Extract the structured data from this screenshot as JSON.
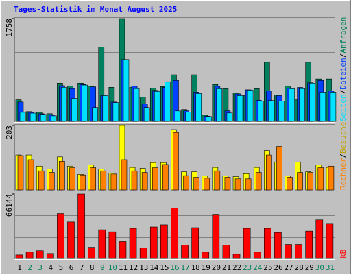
{
  "chart_data": [
    {
      "type": "bar",
      "title": "Tages-Statistik im Monat August 2025",
      "ylim": [
        0,
        1758
      ],
      "yticks": [
        1758
      ],
      "legend_separator": "/",
      "series": [
        {
          "name": "Anfragen",
          "color": "#00805c",
          "values": [
            368,
            166,
            154,
            131,
            653,
            606,
            653,
            606,
            1271,
            582,
            1758,
            582,
            416,
            570,
            594,
            796,
            202,
            796,
            107,
            630,
            558,
            487,
            440,
            558,
            1010,
            451,
            606,
            368,
            1010,
            725,
            725
          ]
        },
        {
          "name": "Dateien",
          "color": "#0040ff",
          "values": [
            330,
            154,
            130,
            110,
            610,
            560,
            630,
            590,
            440,
            330,
            1057,
            606,
            300,
            530,
            580,
            700,
            180,
            500,
            90,
            600,
            180,
            470,
            540,
            360,
            520,
            440,
            570,
            580,
            660,
            700,
            520
          ]
        },
        {
          "name": "Seiten",
          "color": "#00e0ff",
          "values": [
            154,
            140,
            119,
            95,
            582,
            392,
            620,
            238,
            440,
            321,
            1057,
            560,
            238,
            511,
            677,
            178,
            160,
            475,
            83,
            558,
            143,
            440,
            534,
            344,
            356,
            344,
            558,
            560,
            653,
            499,
            499
          ]
        }
      ]
    },
    {
      "type": "bar",
      "ylim": [
        0,
        203
      ],
      "yticks": [
        203
      ],
      "legend_separator": "/",
      "series": [
        {
          "name": "Besuche",
          "color": "#ffff00",
          "values": [
            110,
            110,
            75,
            66,
            104,
            75,
            49,
            79,
            66,
            53,
            203,
            71,
            68,
            86,
            86,
            190,
            57,
            57,
            44,
            71,
            44,
            42,
            51,
            71,
            124,
            88,
            44,
            88,
            57,
            79,
            71
          ]
        },
        {
          "name": "Rechner",
          "color": "#ff8000",
          "values": [
            108,
            95,
            60,
            55,
            90,
            70,
            47,
            70,
            60,
            50,
            95,
            60,
            55,
            70,
            80,
            181,
            45,
            40,
            37,
            60,
            40,
            35,
            35,
            55,
            110,
            137,
            40,
            55,
            55,
            70,
            75
          ]
        }
      ]
    },
    {
      "type": "bar",
      "ylim": [
        0,
        66144
      ],
      "yticks": [
        66144
      ],
      "categories": [
        "1",
        "2",
        "3",
        "4",
        "5",
        "6",
        "7",
        "8",
        "9",
        "10",
        "11",
        "12",
        "13",
        "14",
        "15",
        "16",
        "17",
        "18",
        "19",
        "20",
        "21",
        "22",
        "23",
        "24",
        "25",
        "26",
        "27",
        "28",
        "29",
        "30",
        "31"
      ],
      "category_colors": [
        "#000000",
        "#00805c",
        "#00805c",
        "#000000",
        "#000000",
        "#000000",
        "#000000",
        "#000000",
        "#00805c",
        "#00805c",
        "#000000",
        "#000000",
        "#000000",
        "#000000",
        "#000000",
        "#00805c",
        "#00805c",
        "#000000",
        "#000000",
        "#000000",
        "#000000",
        "#000000",
        "#00805c",
        "#00805c",
        "#000000",
        "#000000",
        "#000000",
        "#000000",
        "#000000",
        "#00805c",
        "#00805c"
      ],
      "series": [
        {
          "name": "kB",
          "color": "#ff0000",
          "values": [
            3595,
            6471,
            7909,
            5033,
            46015,
            37387,
            66144,
            11504,
            29479,
            27322,
            17256,
            30917,
            10785,
            32355,
            34512,
            51768,
            13663,
            31636,
            6471,
            45296,
            13663,
            4314,
            30917,
            6471,
            30917,
            26603,
            14381,
            14381,
            28041,
            39545,
            35950
          ]
        }
      ]
    }
  ]
}
